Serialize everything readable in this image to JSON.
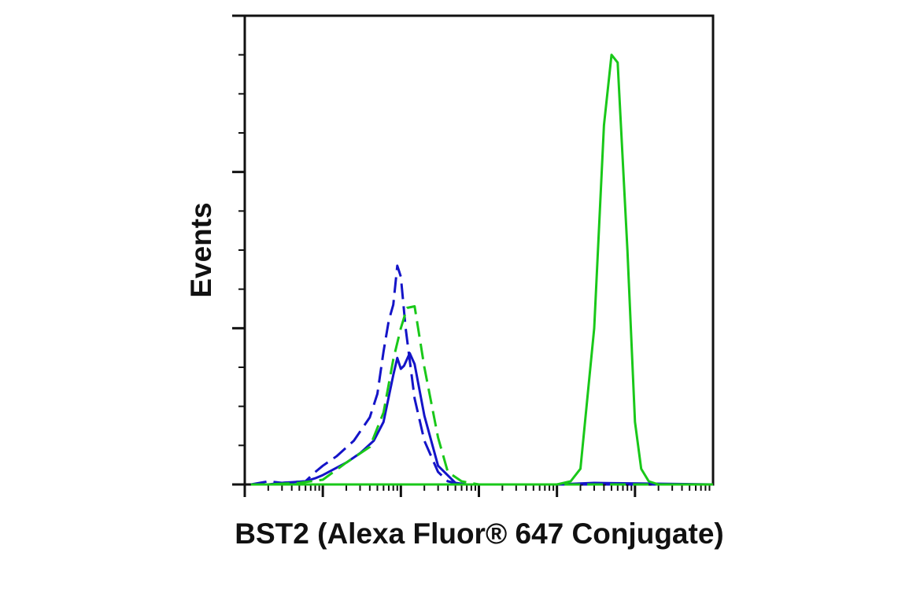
{
  "chart_data": {
    "type": "line",
    "title": "",
    "xlabel": "BST2 (Alexa Fluor® 647 Conjugate)",
    "ylabel": "Events",
    "x_scale": "log",
    "xlim": [
      1,
      1000000
    ],
    "ylim": [
      0,
      300
    ],
    "x_major_ticks": [
      1,
      10,
      100,
      1000,
      10000,
      100000
    ],
    "y_major_ticks": [
      0,
      100,
      200,
      300
    ],
    "tick_labels_shown": false,
    "grid": false,
    "legend": "none",
    "colors": {
      "blue": "#1414c8",
      "green": "#19c819",
      "axis": "#111111"
    },
    "series": [
      {
        "color": "#1414c8",
        "style": "solid",
        "x": [
          1.2,
          2,
          3,
          6,
          8,
          10,
          20,
          30,
          45,
          60,
          80,
          90,
          100,
          110,
          130,
          150,
          200,
          300,
          500,
          700,
          1000,
          2000,
          5000,
          10000,
          30000,
          1000000
        ],
        "y": [
          0,
          0,
          1,
          2,
          4,
          6,
          14,
          20,
          28,
          40,
          70,
          81,
          74,
          76,
          84,
          77,
          44,
          12,
          1,
          0,
          0,
          0,
          0,
          0,
          1,
          0
        ]
      },
      {
        "color": "#1414c8",
        "style": "dashed",
        "x": [
          1.2,
          2,
          3,
          6,
          8,
          10,
          15,
          25,
          40,
          50,
          60,
          70,
          80,
          90,
          100,
          115,
          150,
          200,
          300,
          400,
          600,
          1000,
          2000,
          1000000
        ],
        "y": [
          0,
          2,
          1,
          2,
          8,
          12,
          18,
          28,
          43,
          58,
          85,
          105,
          115,
          140,
          133,
          100,
          55,
          28,
          8,
          2,
          0,
          0,
          0,
          0
        ]
      },
      {
        "color": "#19c819",
        "style": "dashed",
        "x": [
          1.2,
          2,
          5,
          10,
          20,
          40,
          60,
          80,
          100,
          120,
          150,
          200,
          300,
          400,
          600,
          1000,
          1000000
        ],
        "y": [
          0,
          0,
          1,
          3,
          14,
          24,
          46,
          80,
          100,
          113,
          114,
          75,
          30,
          8,
          2,
          0,
          0
        ]
      },
      {
        "color": "#19c819",
        "style": "solid",
        "x": [
          1.2,
          10,
          100,
          1000,
          10000,
          15000,
          20000,
          30000,
          40000,
          50000,
          60000,
          80000,
          100000,
          120000,
          150000,
          200000,
          1000000
        ],
        "y": [
          0,
          0,
          0,
          0,
          0,
          2,
          10,
          100,
          230,
          275,
          270,
          150,
          40,
          10,
          2,
          0,
          0
        ]
      }
    ]
  }
}
